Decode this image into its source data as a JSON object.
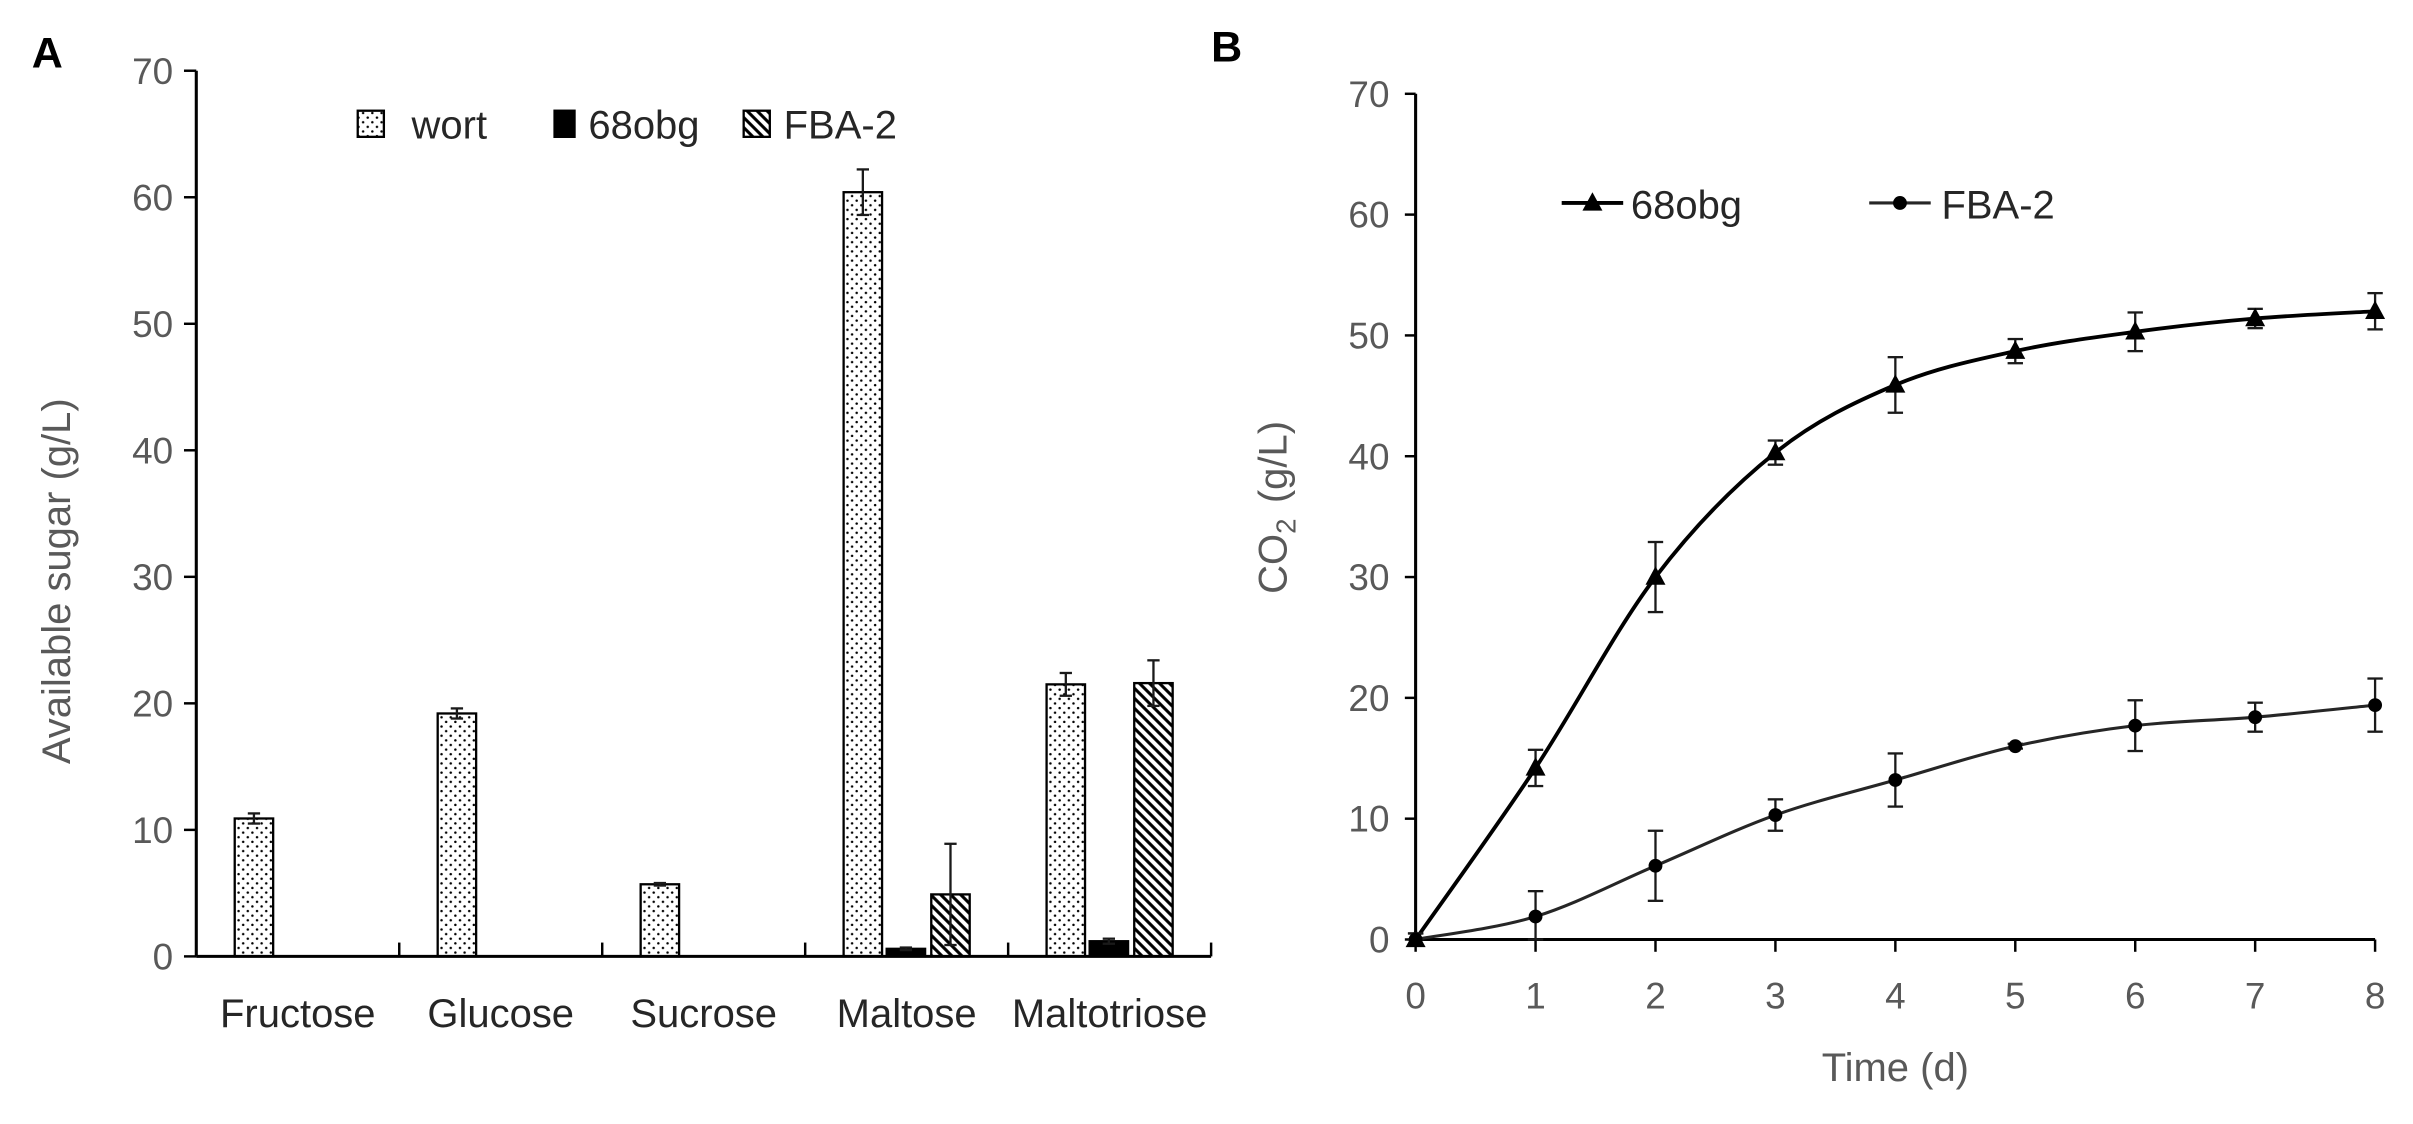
{
  "chart_data": [
    {
      "panel_label": "A",
      "type": "bar",
      "title": "",
      "xlabel": "",
      "ylabel": "Available sugar (g/L)",
      "ylim": [
        0,
        70
      ],
      "yticks": [
        0,
        10,
        20,
        30,
        40,
        50,
        60,
        70
      ],
      "categories": [
        "Fructose",
        "Glucose",
        "Sucrose",
        "Maltose",
        "Maltotriose"
      ],
      "series": [
        {
          "name": "wort",
          "fill": "dots",
          "color": "#000000",
          "values": [
            10.9,
            19.2,
            5.7,
            60.4,
            21.5
          ],
          "errors": [
            0.4,
            0.4,
            0.1,
            1.8,
            0.9
          ]
        },
        {
          "name": "68obg",
          "fill": "solid",
          "color": "#000000",
          "values": [
            0,
            0,
            0,
            0.6,
            1.2
          ],
          "errors": [
            0,
            0,
            0,
            0.1,
            0.2
          ]
        },
        {
          "name": "FBA-2",
          "fill": "hatch",
          "color": "#000000",
          "values": [
            0,
            0,
            0,
            4.9,
            21.6
          ],
          "errors": [
            0,
            0,
            0,
            4.0,
            1.8
          ]
        }
      ],
      "legend": "top-center",
      "grid": false
    },
    {
      "panel_label": "B",
      "type": "line",
      "title": "",
      "xlabel": "Time (d)",
      "ylabel": {
        "main": "CO",
        "subscript": "2",
        "unit": "(g/L)"
      },
      "xlim": [
        0,
        8
      ],
      "ylim": [
        0,
        70
      ],
      "xticks": [
        0,
        1,
        2,
        3,
        4,
        5,
        6,
        7,
        8
      ],
      "yticks": [
        0,
        10,
        20,
        30,
        40,
        50,
        60,
        70
      ],
      "x": [
        0,
        1,
        2,
        3,
        4,
        5,
        6,
        7,
        8
      ],
      "series": [
        {
          "name": "68obg",
          "marker": "triangle",
          "color": "#000000",
          "values": [
            0,
            14.2,
            30.0,
            40.3,
            45.9,
            48.7,
            50.3,
            51.4,
            52.0
          ],
          "errors": [
            0.5,
            1.5,
            2.9,
            1.0,
            2.3,
            1.0,
            1.6,
            0.8,
            1.5
          ]
        },
        {
          "name": "FBA-2",
          "marker": "circle",
          "color": "#262626",
          "values": [
            0,
            1.9,
            6.1,
            10.3,
            13.2,
            16.0,
            17.7,
            18.4,
            19.4
          ],
          "errors": [
            0.5,
            2.1,
            2.9,
            1.3,
            2.2,
            0.2,
            2.1,
            1.2,
            2.2
          ]
        }
      ],
      "legend": "top-left",
      "grid": false
    }
  ]
}
